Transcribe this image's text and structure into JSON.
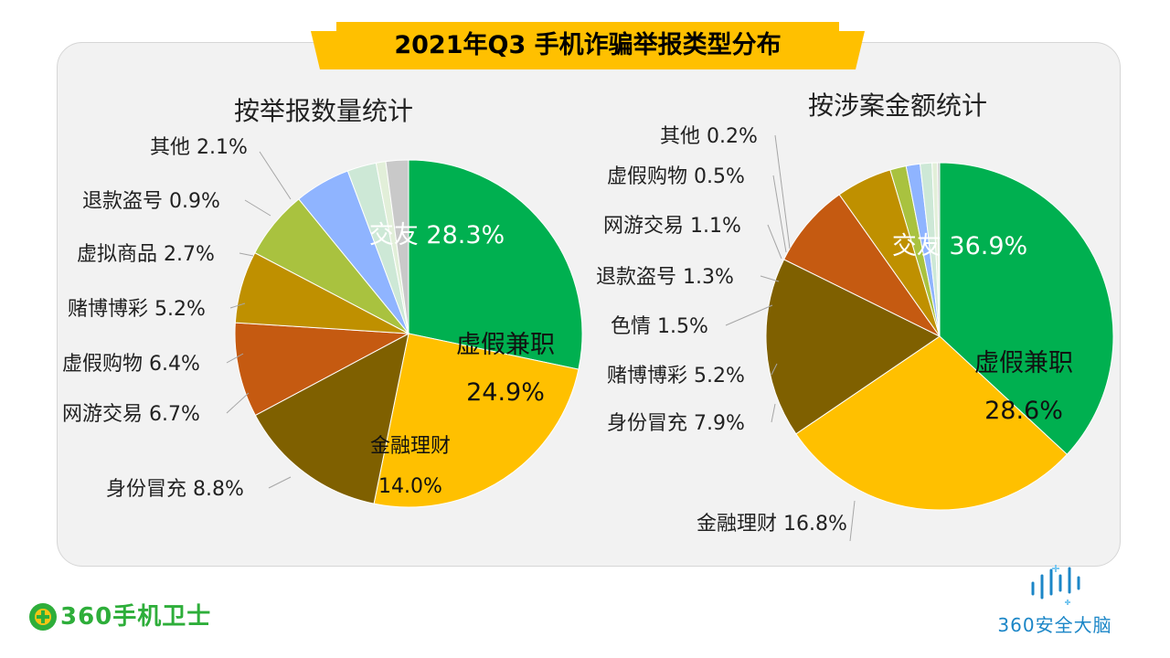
{
  "page_title": "2021年Q3 手机诈骗举报类型分布",
  "colors": {
    "banner": "#FFC000",
    "panel_bg": "#F2F2F2",
    "brand_green": "#2EAE3A",
    "brand_blue": "#1B86C7"
  },
  "chart_data": [
    {
      "type": "pie",
      "title": "按举报数量统计",
      "unit": "%",
      "slices": [
        {
          "label": "交友",
          "value": 28.3,
          "color": "#00B050"
        },
        {
          "label": "虚假兼职",
          "value": 24.9,
          "color": "#FFC000"
        },
        {
          "label": "金融理财",
          "value": 14.0,
          "color": "#7F6000"
        },
        {
          "label": "身份冒充",
          "value": 8.8,
          "color": "#C55A11"
        },
        {
          "label": "网游交易",
          "value": 6.7,
          "color": "#BF9000"
        },
        {
          "label": "虚假购物",
          "value": 6.4,
          "color": "#A9C23F"
        },
        {
          "label": "赌博博彩",
          "value": 5.2,
          "color": "#8FB4FF"
        },
        {
          "label": "虚拟商品",
          "value": 2.7,
          "color": "#CDE8D6"
        },
        {
          "label": "退款盗号",
          "value": 0.9,
          "color": "#E2EFD9"
        },
        {
          "label": "其他",
          "value": 2.1,
          "color": "#C9C9C9"
        }
      ]
    },
    {
      "type": "pie",
      "title": "按涉案金额统计",
      "unit": "%",
      "slices": [
        {
          "label": "交友",
          "value": 36.9,
          "color": "#00B050"
        },
        {
          "label": "虚假兼职",
          "value": 28.6,
          "color": "#FFC000"
        },
        {
          "label": "金融理财",
          "value": 16.8,
          "color": "#7F6000"
        },
        {
          "label": "身份冒充",
          "value": 7.9,
          "color": "#C55A11"
        },
        {
          "label": "赌博博彩",
          "value": 5.2,
          "color": "#BF9000"
        },
        {
          "label": "色情",
          "value": 1.5,
          "color": "#A9C23F"
        },
        {
          "label": "退款盗号",
          "value": 1.3,
          "color": "#8FB4FF"
        },
        {
          "label": "网游交易",
          "value": 1.1,
          "color": "#CDE8D6"
        },
        {
          "label": "虚假购物",
          "value": 0.5,
          "color": "#E2EFD9"
        },
        {
          "label": "其他",
          "value": 0.2,
          "color": "#C9C9C9"
        }
      ]
    }
  ],
  "brand_left": {
    "text": "360手机卫士"
  },
  "brand_right": {
    "text": "360安全大脑"
  }
}
